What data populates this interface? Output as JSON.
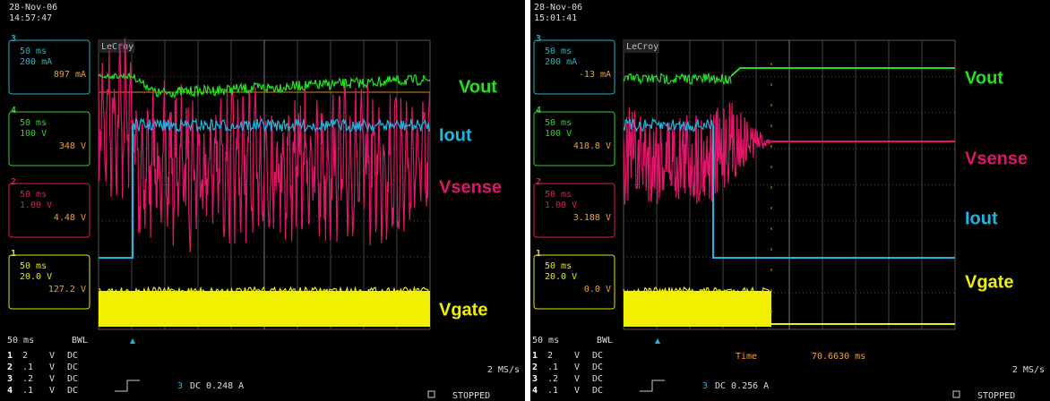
{
  "panels": [
    {
      "date": "28-Nov-06",
      "time": "14:57:47",
      "brand": "LeCroy",
      "channels": [
        {
          "number": "3",
          "timebase": "50 ms",
          "scale": "200 mA",
          "reading": "897 mA",
          "color": "#1fb5c9"
        },
        {
          "number": "4",
          "timebase": "50 ms",
          "scale": "100 V",
          "reading": "348 V",
          "color": "#2fd12f"
        },
        {
          "number": "2",
          "timebase": "50 ms",
          "scale": "1.00 V",
          "reading": "4.48 V",
          "color": "#e0156b"
        },
        {
          "number": "1",
          "timebase": "50 ms",
          "scale": "20.0 V",
          "reading": "127.2 V",
          "color": "#e6e600"
        }
      ],
      "traces": [
        {
          "label": "Vout",
          "color": "#22e022"
        },
        {
          "label": "Iout",
          "color": "#1fb5e0"
        },
        {
          "label": "Vsense",
          "color": "#e0156b"
        },
        {
          "label": "Vgate",
          "color": "#f0f000"
        }
      ],
      "timebase": "50 ms",
      "bwl": "BWL",
      "rows": [
        [
          "1",
          "2",
          "V",
          "DC"
        ],
        [
          "2",
          ".1",
          "V",
          "DC"
        ],
        [
          "3",
          ".2",
          "V",
          "DC"
        ],
        [
          "4",
          ".1",
          "V",
          "DC"
        ]
      ],
      "sample_rate": "2 MS/s",
      "trigger": {
        "channel": "3",
        "setting": "DC 0.248 A"
      },
      "status": "STOPPED"
    },
    {
      "date": "28-Nov-06",
      "time": "15:01:41",
      "brand": "LeCroy",
      "channels": [
        {
          "number": "3",
          "timebase": "50 ms",
          "scale": "200 mA",
          "reading": "-13 mA",
          "color": "#1fb5c9"
        },
        {
          "number": "4",
          "timebase": "50 ms",
          "scale": "100 V",
          "reading": "418.8 V",
          "color": "#2fd12f"
        },
        {
          "number": "2",
          "timebase": "50 ms",
          "scale": "1.00 V",
          "reading": "3.188 V",
          "color": "#e0156b"
        },
        {
          "number": "1",
          "timebase": "50 ms",
          "scale": "20.0 V",
          "reading": "0.0 V",
          "color": "#e6e600"
        }
      ],
      "traces": [
        {
          "label": "Vout",
          "color": "#22e022"
        },
        {
          "label": "Vsense",
          "color": "#e0156b"
        },
        {
          "label": "Iout",
          "color": "#1fb5e0"
        },
        {
          "label": "Vgate",
          "color": "#f0f000"
        }
      ],
      "timebase": "50 ms",
      "bwl": "BWL",
      "rows": [
        [
          "1",
          "2",
          "V",
          "DC"
        ],
        [
          "2",
          ".1",
          "V",
          "DC"
        ],
        [
          "3",
          ".2",
          "V",
          "DC"
        ],
        [
          "4",
          ".1",
          "V",
          "DC"
        ]
      ],
      "sample_rate": "2 MS/s",
      "trigger": {
        "channel": "3",
        "setting": "DC 0.256 A"
      },
      "status": "STOPPED",
      "cursor": {
        "label": "Time",
        "value": "70.6630 ms"
      }
    }
  ]
}
